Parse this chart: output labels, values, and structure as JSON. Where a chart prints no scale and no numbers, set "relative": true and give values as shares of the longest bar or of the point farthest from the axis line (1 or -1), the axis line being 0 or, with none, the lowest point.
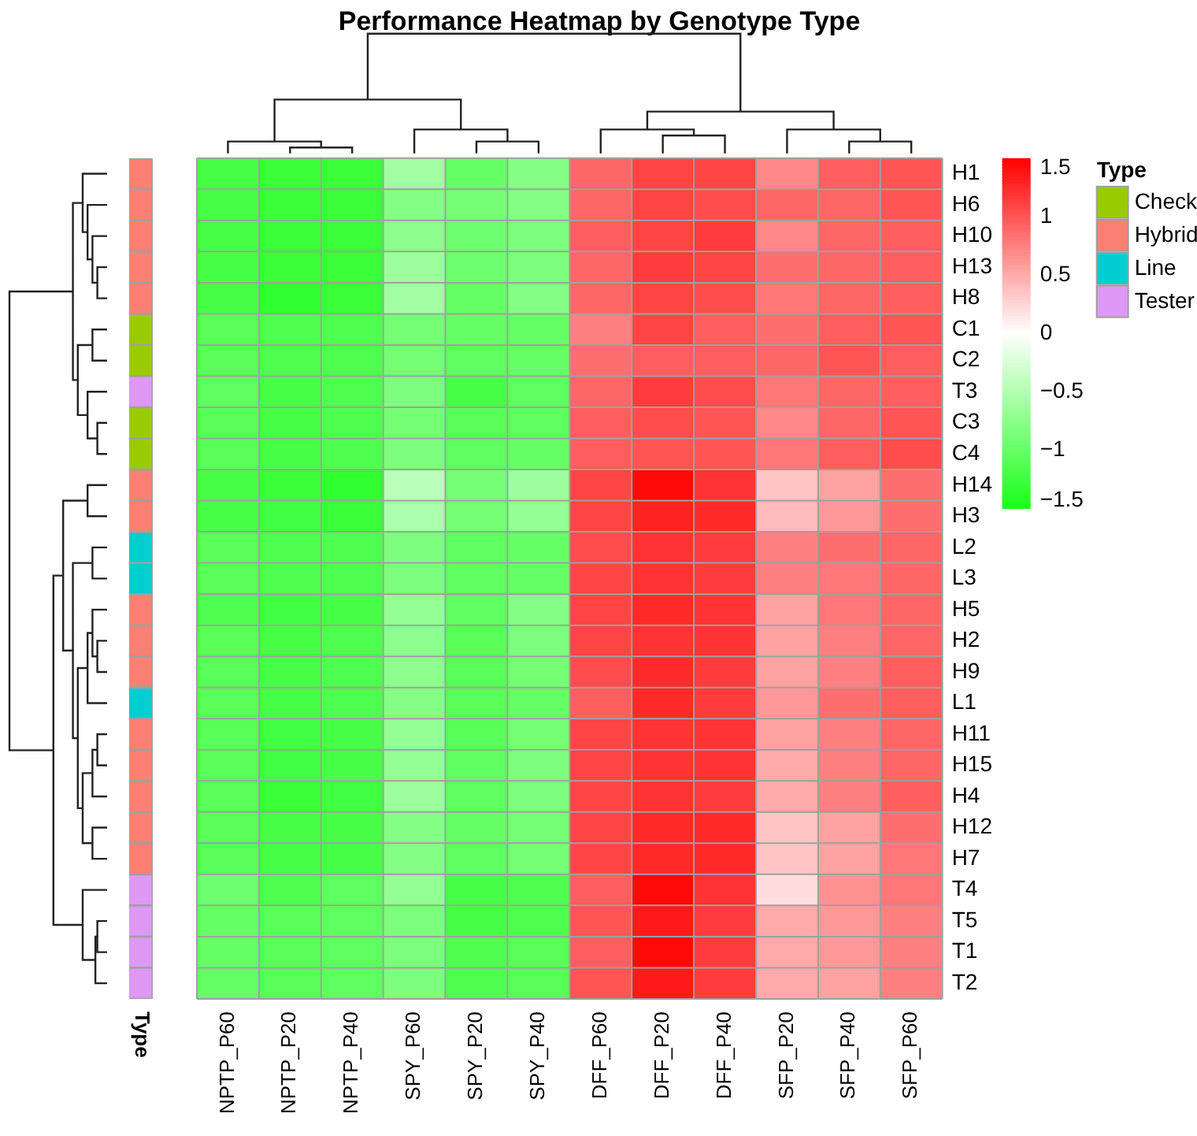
{
  "chart_data": [
    {
      "type": "heatmap",
      "title": "Performance Heatmap by Genotype Type",
      "categories": [
        "NPTP_P60",
        "NPTP_P20",
        "NPTP_P40",
        "SPY_P60",
        "SPY_P20",
        "SPY_P40",
        "DFF_P60",
        "DFF_P20",
        "DFF_P40",
        "SFP_P20",
        "SFP_P40",
        "SFP_P60"
      ],
      "y_categories": [
        "H1",
        "H6",
        "H10",
        "H13",
        "H8",
        "C1",
        "C2",
        "T3",
        "C3",
        "C4",
        "H14",
        "H3",
        "L2",
        "L3",
        "H5",
        "H2",
        "H9",
        "L1",
        "H11",
        "H15",
        "H4",
        "H12",
        "H7",
        "T4",
        "T5",
        "T1",
        "T2"
      ],
      "cells": [
        [
          -1.2,
          -1.3,
          -1.3,
          -0.6,
          -1.0,
          -0.8,
          0.9,
          1.1,
          1.1,
          0.7,
          0.95,
          1.0
        ],
        [
          -1.2,
          -1.3,
          -1.3,
          -0.8,
          -0.9,
          -0.8,
          0.9,
          1.1,
          1.05,
          0.9,
          0.9,
          1.0
        ],
        [
          -1.2,
          -1.3,
          -1.3,
          -0.75,
          -0.95,
          -0.85,
          0.95,
          1.1,
          1.15,
          0.7,
          0.9,
          0.95
        ],
        [
          -1.2,
          -1.3,
          -1.3,
          -0.65,
          -0.95,
          -0.85,
          0.9,
          1.15,
          1.1,
          0.85,
          0.9,
          0.95
        ],
        [
          -1.2,
          -1.35,
          -1.3,
          -0.6,
          -1.0,
          -0.8,
          0.9,
          1.1,
          1.05,
          0.8,
          0.9,
          0.95
        ],
        [
          -1.1,
          -1.15,
          -1.15,
          -0.9,
          -1.0,
          -1.0,
          0.75,
          1.1,
          0.95,
          0.85,
          0.95,
          1.0
        ],
        [
          -1.1,
          -1.15,
          -1.15,
          -0.9,
          -1.05,
          -1.0,
          0.85,
          0.95,
          0.95,
          0.9,
          1.0,
          0.95
        ],
        [
          -1.05,
          -1.2,
          -1.15,
          -0.85,
          -1.2,
          -1.05,
          0.9,
          1.15,
          1.05,
          0.8,
          0.9,
          0.95
        ],
        [
          -1.1,
          -1.2,
          -1.15,
          -0.9,
          -1.1,
          -1.05,
          0.95,
          1.05,
          1.0,
          0.7,
          0.9,
          1.0
        ],
        [
          -1.1,
          -1.2,
          -1.15,
          -0.85,
          -1.05,
          -1.0,
          0.95,
          1.0,
          1.0,
          0.8,
          0.95,
          1.05
        ],
        [
          -1.2,
          -1.3,
          -1.35,
          -0.45,
          -0.9,
          -0.65,
          1.1,
          1.45,
          1.2,
          0.35,
          0.55,
          0.85
        ],
        [
          -1.2,
          -1.25,
          -1.3,
          -0.55,
          -0.9,
          -0.7,
          1.1,
          1.3,
          1.25,
          0.4,
          0.6,
          0.85
        ],
        [
          -1.1,
          -1.15,
          -1.15,
          -0.85,
          -1.05,
          -1.0,
          1.05,
          1.2,
          1.15,
          0.75,
          0.85,
          0.9
        ],
        [
          -1.1,
          -1.15,
          -1.15,
          -0.85,
          -1.05,
          -1.0,
          1.1,
          1.2,
          1.15,
          0.75,
          0.8,
          0.9
        ],
        [
          -1.15,
          -1.25,
          -1.2,
          -0.7,
          -1.05,
          -0.8,
          1.1,
          1.25,
          1.2,
          0.55,
          0.8,
          0.9
        ],
        [
          -1.1,
          -1.2,
          -1.15,
          -0.75,
          -1.1,
          -0.85,
          1.1,
          1.2,
          1.2,
          0.55,
          0.75,
          0.9
        ],
        [
          -1.1,
          -1.2,
          -1.15,
          -0.75,
          -1.1,
          -0.9,
          1.05,
          1.25,
          1.15,
          0.55,
          0.75,
          0.95
        ],
        [
          -1.1,
          -1.2,
          -1.15,
          -0.8,
          -1.1,
          -1.0,
          0.95,
          1.25,
          1.15,
          0.6,
          0.85,
          0.95
        ],
        [
          -1.1,
          -1.25,
          -1.2,
          -0.7,
          -1.1,
          -0.9,
          1.1,
          1.2,
          1.2,
          0.55,
          0.75,
          0.9
        ],
        [
          -1.1,
          -1.25,
          -1.2,
          -0.7,
          -1.05,
          -0.85,
          1.1,
          1.2,
          1.2,
          0.5,
          0.75,
          0.9
        ],
        [
          -1.1,
          -1.3,
          -1.25,
          -0.65,
          -1.05,
          -0.85,
          1.1,
          1.2,
          1.15,
          0.5,
          0.75,
          0.95
        ],
        [
          -1.1,
          -1.2,
          -1.2,
          -0.8,
          -1.0,
          -0.9,
          1.1,
          1.25,
          1.25,
          0.35,
          0.55,
          0.85
        ],
        [
          -1.1,
          -1.2,
          -1.2,
          -0.8,
          -1.05,
          -0.9,
          1.1,
          1.25,
          1.25,
          0.35,
          0.55,
          0.8
        ],
        [
          -0.95,
          -1.15,
          -1.05,
          -0.7,
          -1.2,
          -1.15,
          0.95,
          1.45,
          1.2,
          0.2,
          0.65,
          0.8
        ],
        [
          -1.0,
          -1.1,
          -1.05,
          -0.85,
          -1.2,
          -1.15,
          1.0,
          1.35,
          1.15,
          0.5,
          0.6,
          0.75
        ],
        [
          -1.0,
          -1.1,
          -1.05,
          -0.85,
          -1.15,
          -1.1,
          0.95,
          1.45,
          1.15,
          0.5,
          0.6,
          0.75
        ],
        [
          -1.0,
          -1.1,
          -1.05,
          -0.85,
          -1.15,
          -1.1,
          1.0,
          1.35,
          1.15,
          0.5,
          0.55,
          0.75
        ]
      ],
      "clim": [
        -1.5,
        1.5
      ],
      "cticks": [
        {
          "value": -1.5,
          "label": "−1.5"
        },
        {
          "value": -1,
          "label": "−1"
        },
        {
          "value": -0.5,
          "label": "−0.5"
        },
        0,
        0.5,
        1,
        1.5
      ]
    },
    {
      "type": "bar",
      "orientation": "horizontal",
      "stacked": true,
      "relative": true,
      "tick_labels": false,
      "ylabel": "Type",
      "legend_title": "Type",
      "legend": "right",
      "categories": [
        null,
        null,
        null,
        null,
        null,
        null,
        null,
        null,
        null,
        null,
        null,
        null,
        null,
        null,
        null,
        null,
        null,
        null,
        null,
        null,
        null,
        null,
        null,
        null,
        null,
        null,
        null
      ],
      "series": [
        {
          "name": "Check",
          "color": "#99cc00",
          "values": [
            null,
            null,
            null,
            null,
            null,
            1,
            1,
            null,
            1,
            1,
            null,
            null,
            null,
            null,
            null,
            null,
            null,
            null,
            null,
            null,
            null,
            null,
            null,
            null,
            null,
            null,
            null
          ]
        },
        {
          "name": "Hybrid",
          "color": "#fa8072",
          "values": [
            1,
            1,
            1,
            1,
            1,
            null,
            null,
            null,
            null,
            null,
            1,
            1,
            null,
            null,
            1,
            1,
            1,
            null,
            1,
            1,
            1,
            1,
            1,
            null,
            null,
            null,
            null
          ]
        },
        {
          "name": "Line",
          "color": "#00ced1",
          "values": [
            null,
            null,
            null,
            null,
            null,
            null,
            null,
            null,
            null,
            null,
            null,
            null,
            1,
            1,
            null,
            null,
            null,
            1,
            null,
            null,
            null,
            null,
            null,
            null,
            null,
            null,
            null
          ]
        },
        {
          "name": "Tester",
          "color": "#dd99f5",
          "values": [
            null,
            null,
            null,
            null,
            null,
            null,
            null,
            1,
            null,
            null,
            null,
            null,
            null,
            null,
            null,
            null,
            null,
            null,
            null,
            null,
            null,
            null,
            null,
            1,
            1,
            1,
            1
          ]
        }
      ]
    }
  ]
}
